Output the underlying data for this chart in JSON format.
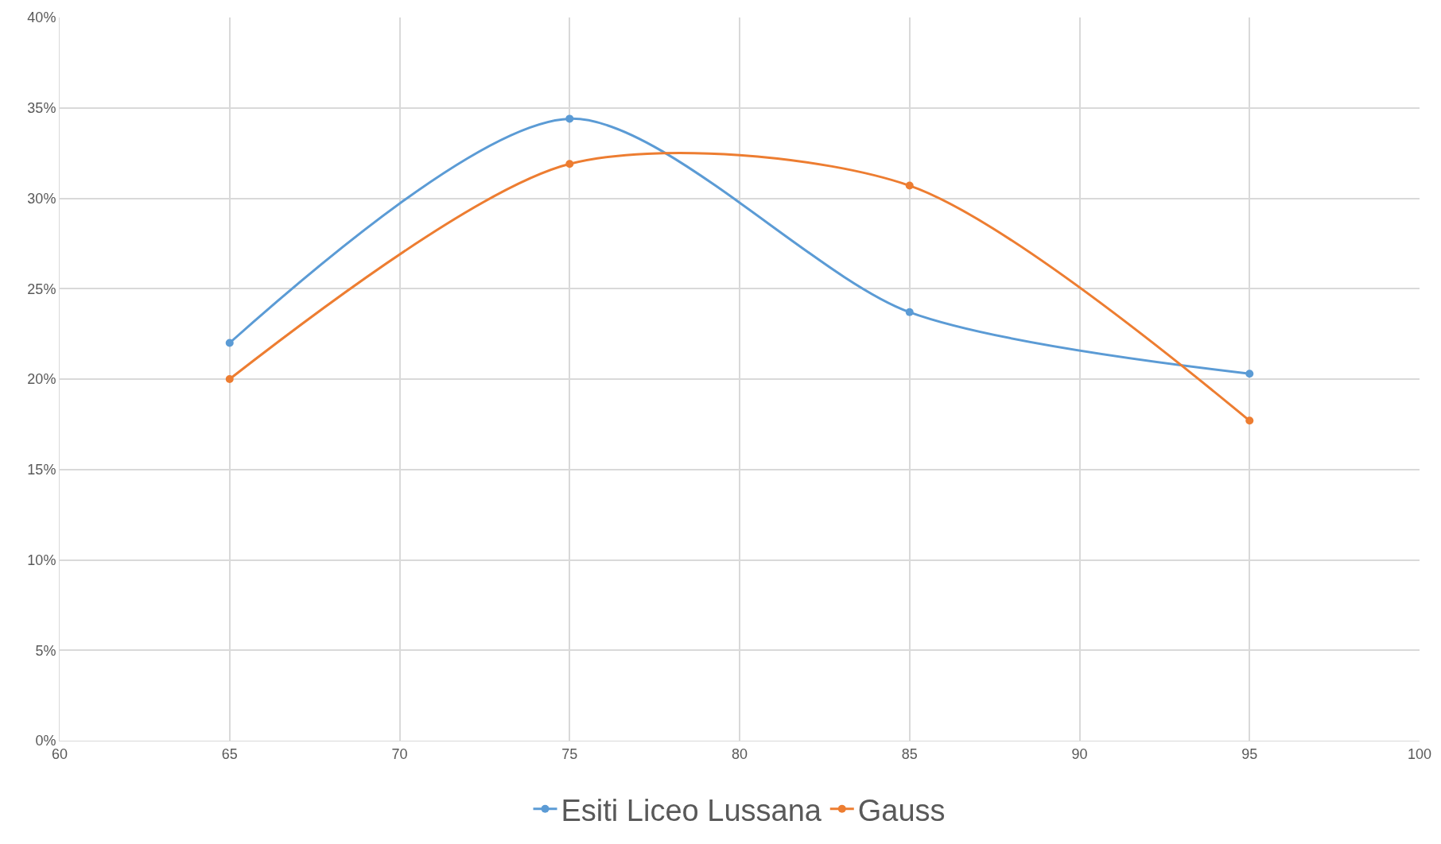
{
  "chart_data": {
    "type": "line",
    "x": [
      65,
      75,
      85,
      95
    ],
    "series": [
      {
        "name": "Esiti Liceo Lussana",
        "color": "#5b9bd5",
        "values": [
          22.0,
          34.4,
          23.7,
          20.3
        ]
      },
      {
        "name": "Gauss",
        "color": "#ed7d31",
        "values": [
          20.0,
          31.9,
          30.7,
          17.7
        ]
      }
    ],
    "xlim": [
      60,
      100
    ],
    "xticks": [
      60,
      65,
      70,
      75,
      80,
      85,
      90,
      95,
      100
    ],
    "ylim": [
      0,
      40
    ],
    "yticks": [
      {
        "value": 0,
        "label": "0%"
      },
      {
        "value": 5,
        "label": "5%"
      },
      {
        "value": 10,
        "label": "10%"
      },
      {
        "value": 15,
        "label": "15%"
      },
      {
        "value": 20,
        "label": "20%"
      },
      {
        "value": 25,
        "label": "25%"
      },
      {
        "value": 30,
        "label": "30%"
      },
      {
        "value": 35,
        "label": "35%"
      },
      {
        "value": 40,
        "label": "40%"
      }
    ],
    "grid": true,
    "legend": "bottom",
    "marker": "circle",
    "line_style": "solid"
  }
}
